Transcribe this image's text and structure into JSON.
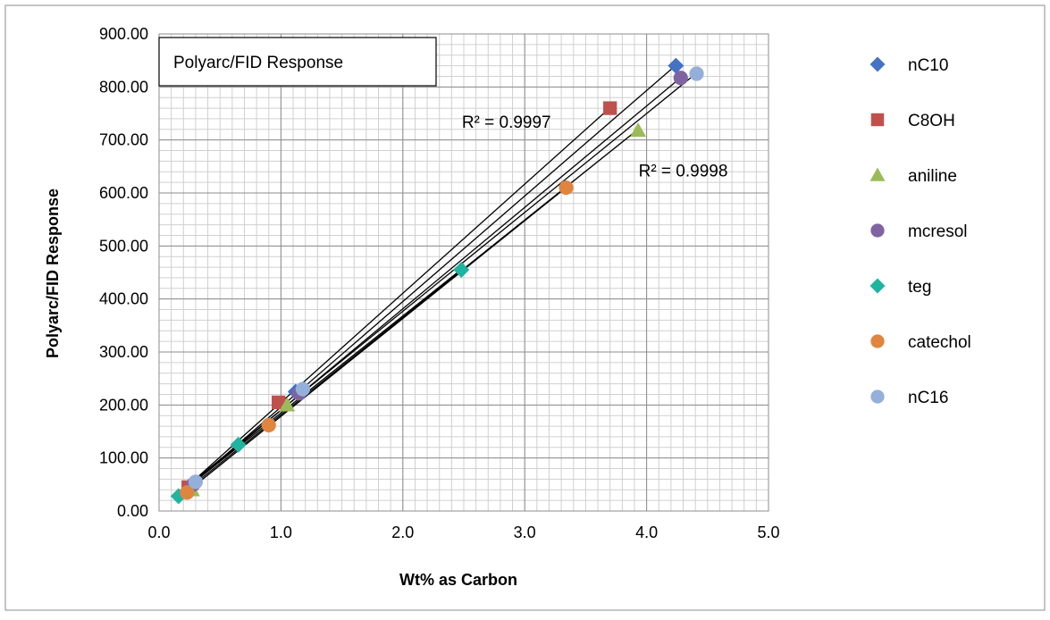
{
  "chart_data": {
    "type": "scatter",
    "title": "Polyarc/FID Response",
    "xlabel": "Wt% as Carbon",
    "ylabel": "Polyarc/FID Response",
    "xlim": [
      0,
      5
    ],
    "ylim": [
      0,
      900
    ],
    "x_ticks": [
      "0.0",
      "1.0",
      "2.0",
      "3.0",
      "4.0",
      "5.0"
    ],
    "y_ticks": [
      "0.00",
      "100.00",
      "200.00",
      "300.00",
      "400.00",
      "500.00",
      "600.00",
      "700.00",
      "800.00",
      "900.00"
    ],
    "grid": true,
    "legend_position": "right",
    "trendlines": true,
    "annotations": [
      {
        "text": "R² = 0.9997",
        "x": 2.85,
        "y": 735
      },
      {
        "text": "R² = 0.9998",
        "x": 4.3,
        "y": 643
      }
    ],
    "series": [
      {
        "name": "nC10",
        "marker": "diamond",
        "color": "#4472C4",
        "x": [
          0.26,
          1.12,
          4.24
        ],
        "y": [
          45,
          225,
          840
        ]
      },
      {
        "name": "C8OH",
        "marker": "square",
        "color": "#C0504D",
        "x": [
          0.24,
          0.98,
          3.7
        ],
        "y": [
          45,
          205,
          760
        ]
      },
      {
        "name": "aniline",
        "marker": "triangle",
        "color": "#9BBB59",
        "x": [
          0.27,
          1.05,
          3.93
        ],
        "y": [
          40,
          200,
          718
        ]
      },
      {
        "name": "mcresol",
        "marker": "circle",
        "color": "#8064A2",
        "x": [
          0.28,
          1.15,
          4.28
        ],
        "y": [
          50,
          222,
          817
        ]
      },
      {
        "name": "teg",
        "marker": "diamond",
        "color": "#1FB4A0",
        "x": [
          0.16,
          0.65,
          2.48
        ],
        "y": [
          28,
          125,
          455
        ]
      },
      {
        "name": "catechol",
        "marker": "circle",
        "color": "#E0853F",
        "x": [
          0.23,
          0.9,
          3.34
        ],
        "y": [
          35,
          162,
          610
        ]
      },
      {
        "name": "nC16",
        "marker": "circle",
        "color": "#95AFDB",
        "x": [
          0.3,
          1.18,
          4.41
        ],
        "y": [
          55,
          230,
          825
        ]
      }
    ]
  }
}
